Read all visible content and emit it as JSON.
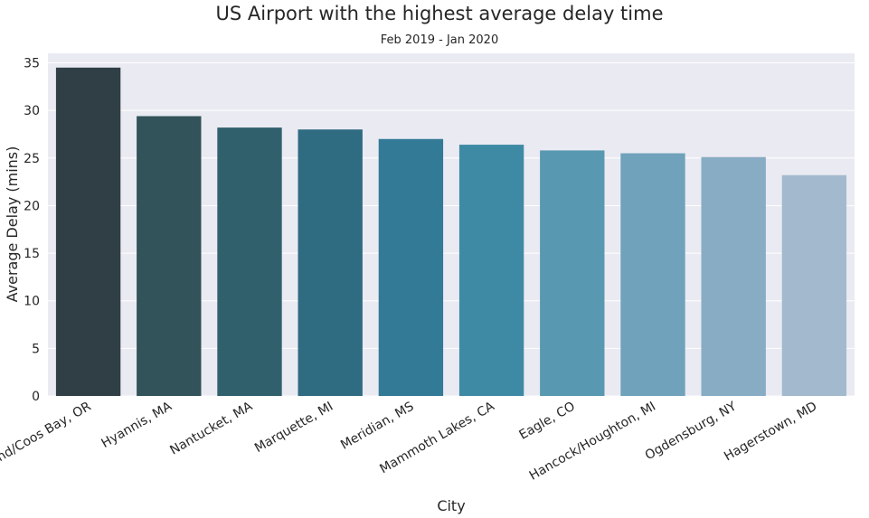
{
  "chart_data": {
    "type": "bar",
    "title": "US Airport with the highest average delay time",
    "subtitle": "Feb 2019 - Jan 2020",
    "xlabel": "City",
    "ylabel": "Average Delay (mins)",
    "ylim": [
      0,
      36
    ],
    "yticks": [
      0,
      5,
      10,
      15,
      20,
      25,
      30,
      35
    ],
    "grid": true,
    "categories": [
      "North Bend/Coos Bay, OR",
      "Hyannis, MA",
      "Nantucket, MA",
      "Marquette, MI",
      "Meridian, MS",
      "Mammoth Lakes, CA",
      "Eagle, CO",
      "Hancock/Houghton, MI",
      "Ogdensburg, NY",
      "Hagerstown, MD"
    ],
    "values": [
      34.5,
      29.4,
      28.2,
      28.0,
      27.0,
      26.4,
      25.8,
      25.5,
      25.1,
      23.2
    ],
    "colors": [
      "#2f3f45",
      "#325359",
      "#31606d",
      "#2f6b81",
      "#327a95",
      "#3e8aa4",
      "#5898b0",
      "#70a2bb",
      "#88acc3",
      "#a3b9cd"
    ],
    "background": "#eaeaf2"
  }
}
